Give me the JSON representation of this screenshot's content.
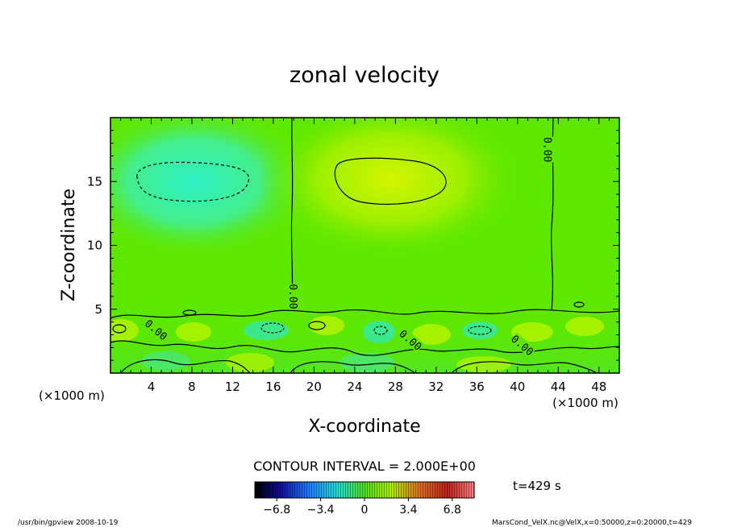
{
  "chart_data": {
    "type": "heatmap",
    "title": "zonal velocity",
    "xlabel": "X-coordinate",
    "ylabel": "Z-coordinate",
    "x_unit_left": "(×1000 m)",
    "x_unit_right": "(×1000 m)",
    "xlim": [
      0,
      50
    ],
    "ylim": [
      0,
      20
    ],
    "x_ticks": [
      "4",
      "8",
      "12",
      "16",
      "20",
      "24",
      "28",
      "32",
      "36",
      "40",
      "44",
      "48"
    ],
    "y_ticks": [
      "5",
      "10",
      "15"
    ],
    "x_tick_values": [
      4,
      8,
      12,
      16,
      20,
      24,
      28,
      32,
      36,
      40,
      44,
      48
    ],
    "y_tick_values": [
      5,
      10,
      15
    ],
    "contour_interval": "CONTOUR INTERVAL = 2.000E+00",
    "contour_labels": [
      {
        "text": "0.00",
        "x": 18,
        "y": 6
      },
      {
        "text": "0.00",
        "x": 43,
        "y": 17.5
      },
      {
        "text": "0.00",
        "x": 4.5,
        "y": 3.4
      },
      {
        "text": "0.00",
        "x": 29.5,
        "y": 2.6
      },
      {
        "text": "0.00",
        "x": 40.5,
        "y": 2.2
      }
    ],
    "colorbar": {
      "ticks": [
        "−6.8",
        "−3.4",
        "0",
        "3.4",
        "6.8"
      ],
      "tick_values": [
        -6.8,
        -3.4,
        0,
        3.4,
        6.8
      ],
      "range": [
        -8.5,
        8.5
      ]
    },
    "time_label": "t=429 s",
    "colors": {
      "field_base": "#5ee800",
      "negative_blob": "#30efb0",
      "positive_blob": "#c8f400"
    }
  },
  "footer": {
    "left": "/usr/bin/gpview   2008-10-19",
    "right": "MarsCond_VelX.nc@VelX,x=0:50000,z=0:20000,t=429"
  }
}
